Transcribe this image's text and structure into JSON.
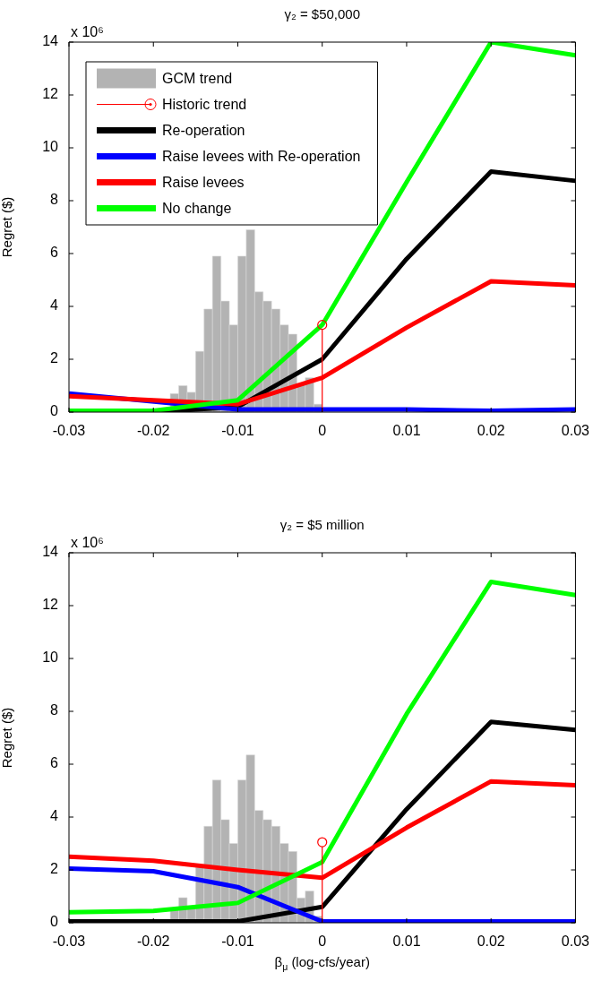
{
  "chart_data": [
    {
      "type": "line",
      "title": "γ₂ = $50,000",
      "ylabel": "Regret ($)",
      "annotations": [
        "x 10⁶"
      ],
      "xlim": [
        -0.03,
        0.03
      ],
      "xticks": [
        -0.03,
        -0.02,
        -0.01,
        0,
        0.01,
        0.02,
        0.03
      ],
      "ylim": [
        0,
        14
      ],
      "yticks": [
        0,
        2,
        4,
        6,
        8,
        10,
        12,
        14
      ],
      "legend": "top left",
      "x": [
        -0.03,
        -0.02,
        -0.01,
        0,
        0.01,
        0.02,
        0.03
      ],
      "series": [
        {
          "name": "GCM trend",
          "type": "histogram",
          "color": "#b3b3b3",
          "bins": [
            -0.018,
            -0.017,
            -0.016,
            -0.015,
            -0.014,
            -0.013,
            -0.012,
            -0.011,
            -0.01,
            -0.009,
            -0.008,
            -0.007,
            -0.006,
            -0.005,
            -0.004,
            -0.003,
            -0.002,
            -0.001,
            0
          ],
          "values": [
            0.7,
            1.0,
            0.75,
            2.3,
            3.9,
            5.9,
            4.2,
            3.3,
            5.9,
            6.9,
            4.55,
            4.2,
            3.9,
            3.3,
            2.95,
            1.05,
            1.3,
            0.3
          ]
        },
        {
          "name": "Historic trend",
          "type": "lollipop",
          "marker": "circle",
          "color": "#ff0000",
          "x": [
            0
          ],
          "values": [
            3.3
          ]
        },
        {
          "name": "Re-operation",
          "color": "#000000",
          "values": [
            0,
            0,
            0.2,
            2.0,
            5.8,
            9.1,
            8.75
          ]
        },
        {
          "name": "Raise levees with Re-operation",
          "color": "#0000ff",
          "values": [
            0.7,
            null,
            0.1,
            0.1,
            0.1,
            0.05,
            0.1
          ]
        },
        {
          "name": "Raise levees",
          "color": "#ff0000",
          "values": [
            0.6,
            0.45,
            0.3,
            1.3,
            3.2,
            4.95,
            4.8
          ]
        },
        {
          "name": "No change",
          "color": "#00ff00",
          "values": [
            0.05,
            0.05,
            0.45,
            3.3,
            8.7,
            14,
            13.5
          ]
        }
      ]
    },
    {
      "type": "line",
      "title": "γ₂ = $5 million",
      "xlabel": "β$_{μ}$ (log-cfs/year)",
      "ylabel": "Regret ($)",
      "annotations": [
        "x 10⁶"
      ],
      "xlim": [
        -0.03,
        0.03
      ],
      "xticks": [
        -0.03,
        -0.02,
        -0.01,
        0,
        0.01,
        0.02,
        0.03
      ],
      "ylim": [
        0,
        14
      ],
      "yticks": [
        0,
        2,
        4,
        6,
        8,
        10,
        12,
        14
      ],
      "x": [
        -0.03,
        -0.02,
        -0.01,
        0,
        0.01,
        0.02,
        0.03
      ],
      "series": [
        {
          "type": "histogram",
          "color": "#b3b3b3",
          "bins": [
            -0.018,
            -0.017,
            -0.016,
            -0.015,
            -0.014,
            -0.013,
            -0.012,
            -0.011,
            -0.01,
            -0.009,
            -0.008,
            -0.007,
            -0.006,
            -0.005,
            -0.004,
            -0.003,
            -0.002,
            -0.001,
            0
          ],
          "values": [
            0.55,
            0.95,
            0.55,
            2.1,
            3.65,
            5.4,
            3.9,
            3.0,
            5.4,
            6.35,
            4.25,
            3.9,
            3.65,
            3.0,
            2.7,
            0.94,
            1.2,
            0.25
          ]
        },
        {
          "type": "lollipop",
          "marker": "circle",
          "color": "#ff0000",
          "x": [
            0
          ],
          "values": [
            3.05
          ]
        },
        {
          "color": "#000000",
          "values": [
            0.05,
            0.05,
            0.05,
            0.6,
            4.3,
            7.6,
            7.3
          ]
        },
        {
          "color": "#0000ff",
          "values": [
            2.05,
            1.95,
            1.35,
            0.05,
            0.05,
            0.05,
            0.05
          ]
        },
        {
          "color": "#ff0000",
          "values": [
            2.5,
            2.35,
            2.0,
            1.7,
            3.6,
            5.35,
            5.2
          ]
        },
        {
          "color": "#00ff00",
          "values": [
            0.4,
            0.45,
            0.75,
            2.3,
            7.9,
            12.9,
            12.4
          ]
        }
      ]
    }
  ]
}
